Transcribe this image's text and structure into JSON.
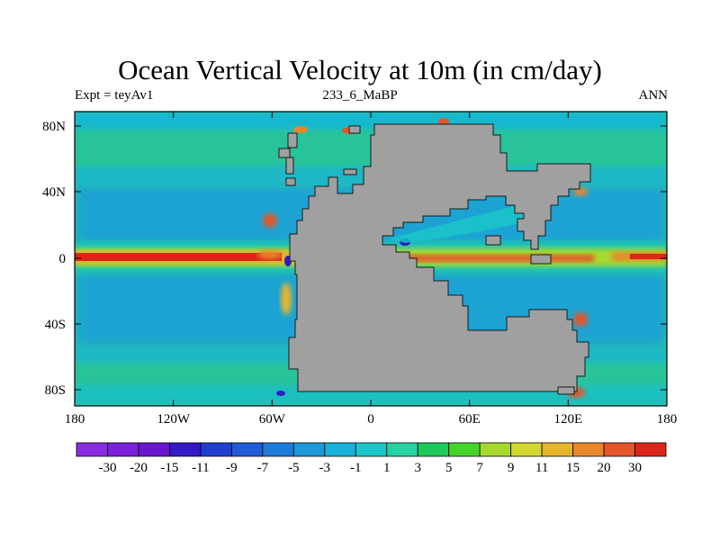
{
  "title": "Ocean Vertical Velocity at 10m (in cm/day)",
  "subtitle": {
    "left": "Expt = teyAv1",
    "center": "233_6_MaBP",
    "right": "ANN"
  },
  "axes": {
    "x_ticks": [
      "180",
      "120W",
      "60W",
      "0",
      "60E",
      "120E",
      "180"
    ],
    "y_ticks": [
      "80N",
      "40N",
      "0",
      "40S",
      "80S"
    ]
  },
  "land_color": "#a0a0a0",
  "colorbar": {
    "labels": [
      "-30",
      "-20",
      "-15",
      "-11",
      "-9",
      "-7",
      "-5",
      "-3",
      "-1",
      "1",
      "3",
      "5",
      "7",
      "9",
      "11",
      "15",
      "20",
      "30"
    ],
    "colors": [
      "#8a2be2",
      "#7b1fd8",
      "#6a16d0",
      "#3319c8",
      "#1f3fd1",
      "#1f5cd6",
      "#1e7cd8",
      "#1d98d8",
      "#16b2d9",
      "#1ac7c8",
      "#24d2a2",
      "#1ec95a",
      "#44d42a",
      "#a6d92e",
      "#d4d72e",
      "#e7b52a",
      "#e8872a",
      "#e4562a",
      "#dd2418"
    ]
  }
}
